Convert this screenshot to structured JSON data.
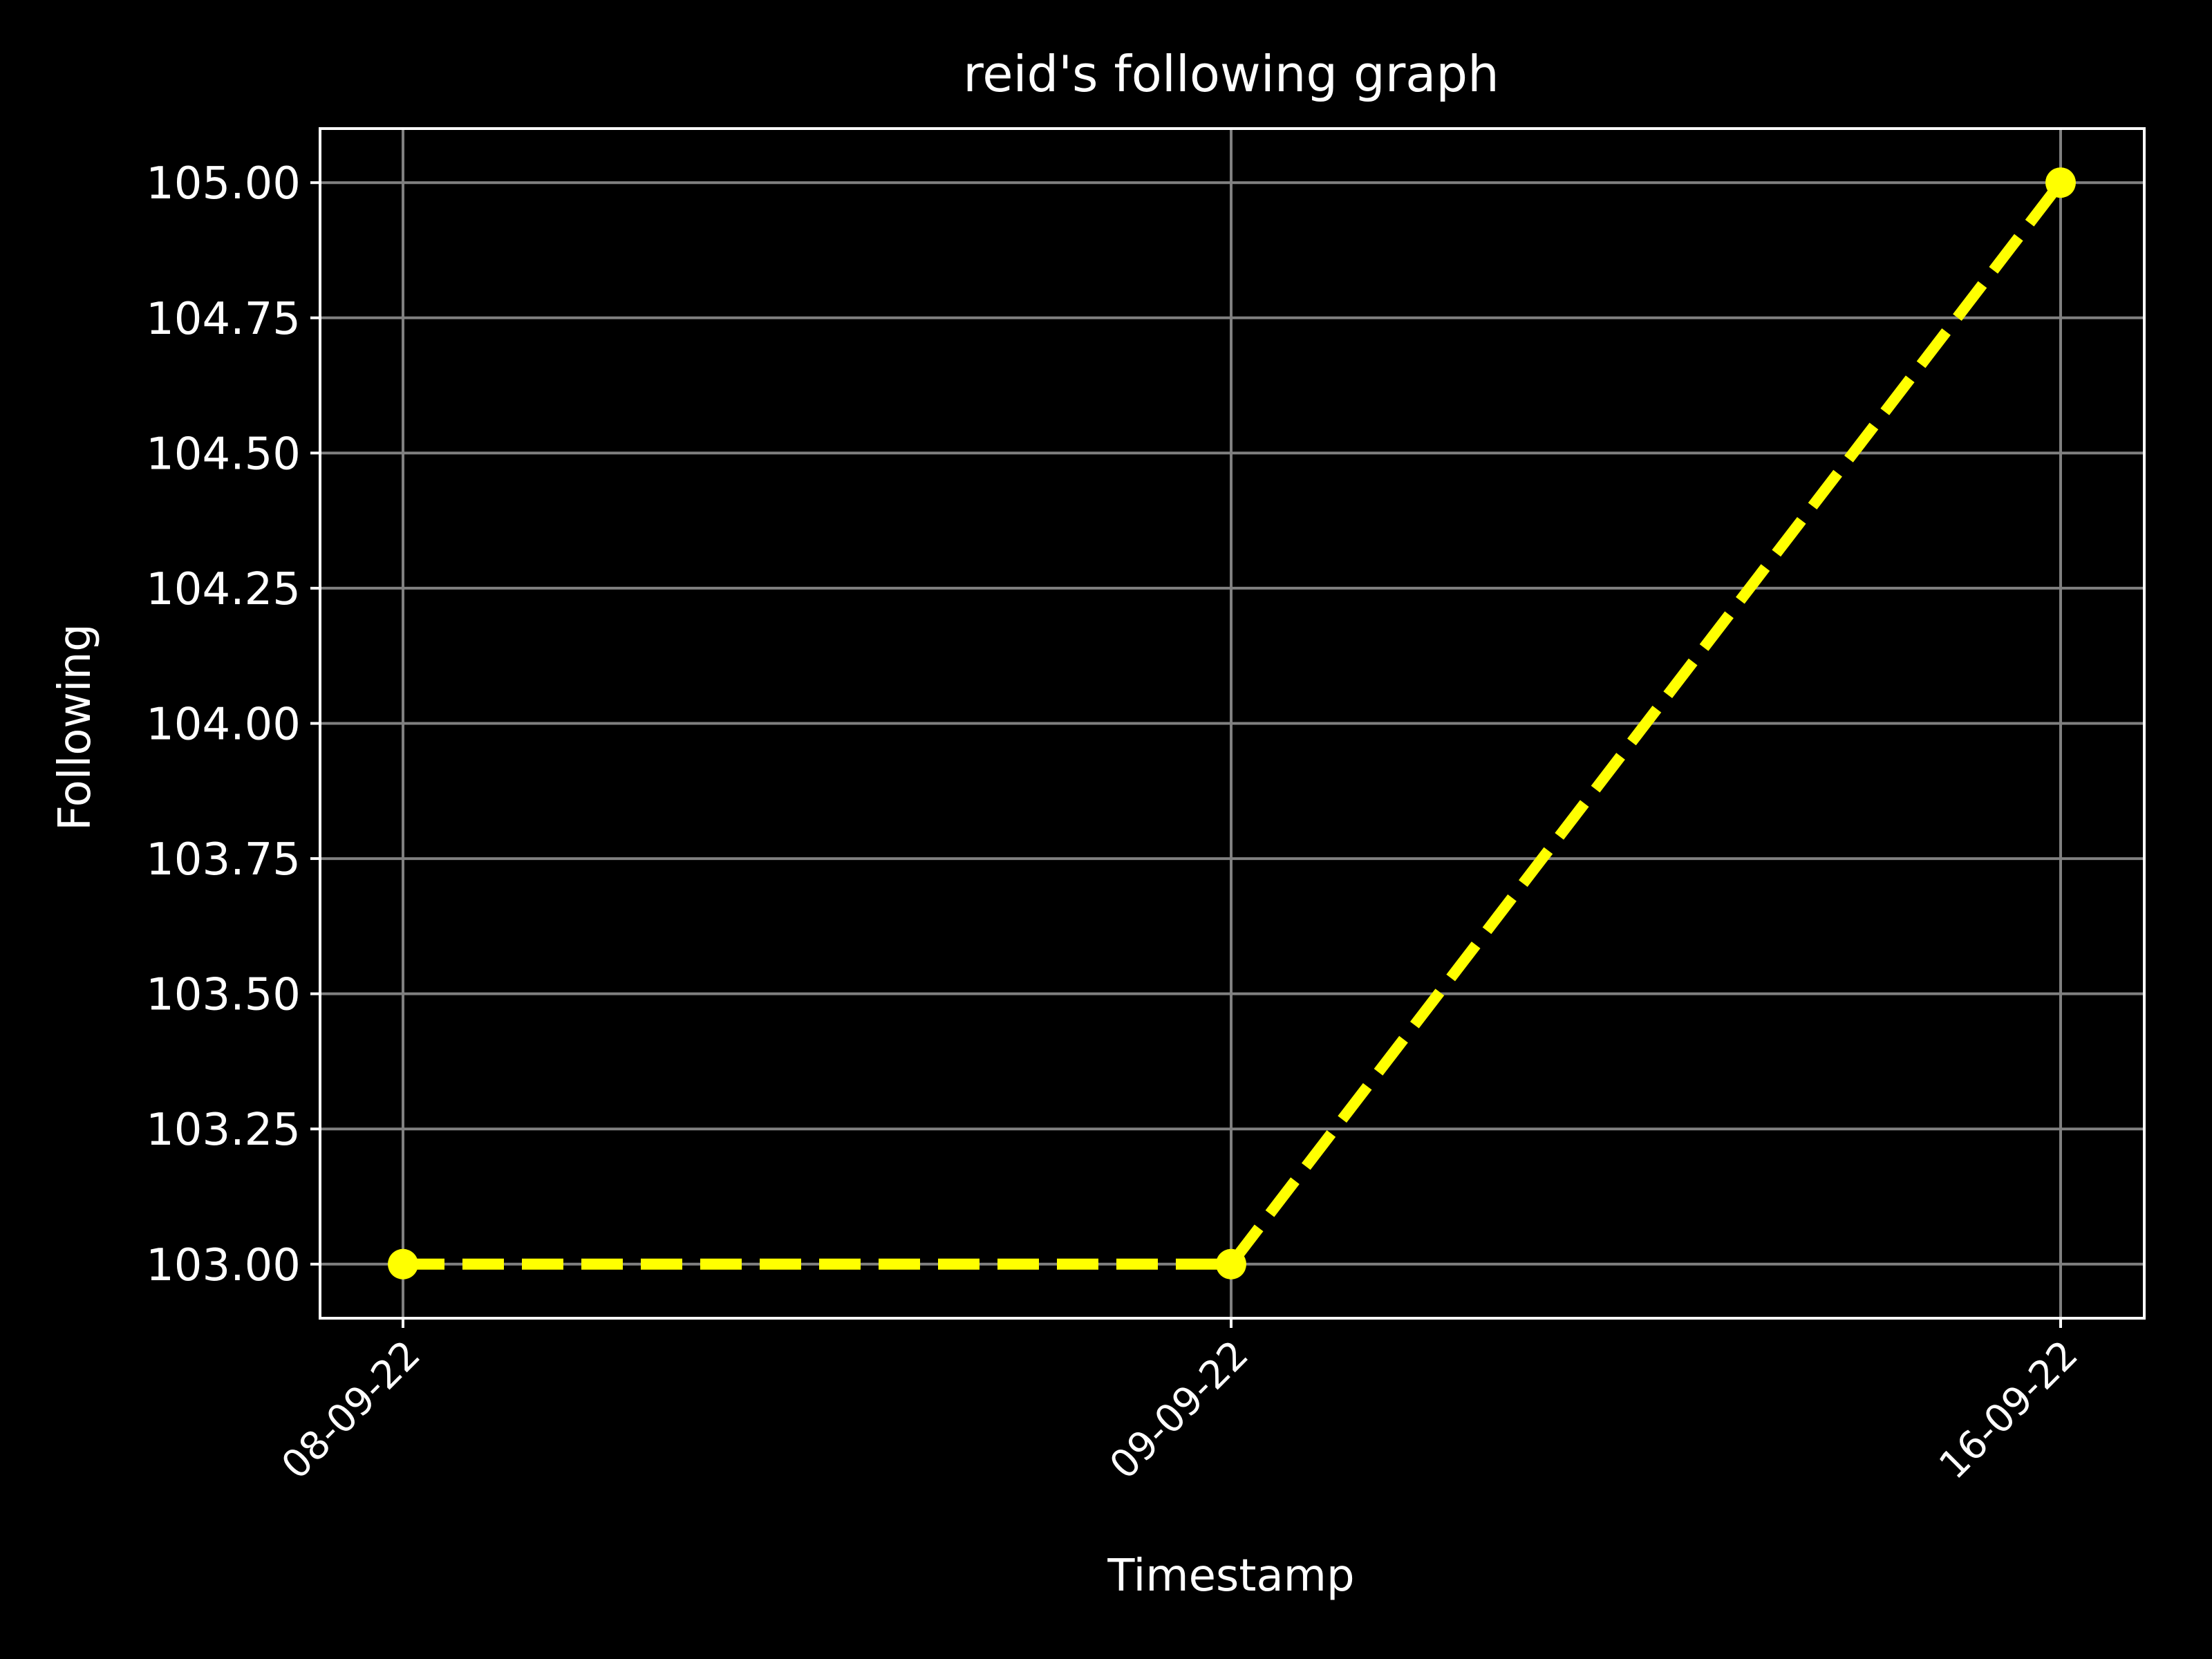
{
  "chart_data": {
    "type": "line",
    "title": "reid's following graph",
    "xlabel": "Timestamp",
    "ylabel": "Following",
    "categories": [
      "08-09-22",
      "09-09-22",
      "16-09-22"
    ],
    "series": [
      {
        "values": [
          103,
          103,
          105
        ]
      }
    ],
    "ylim": [
      102.9,
      105.1
    ],
    "yticks": [
      "103.00",
      "103.25",
      "103.50",
      "103.75",
      "104.00",
      "104.25",
      "104.50",
      "104.75",
      "105.00"
    ],
    "grid": true,
    "line_style": "dashed",
    "marker": "circle",
    "colors": {
      "background": "#000000",
      "line": "#ffff00",
      "grid": "#808080",
      "axes": "#ffffff",
      "text": "#ffffff"
    }
  }
}
